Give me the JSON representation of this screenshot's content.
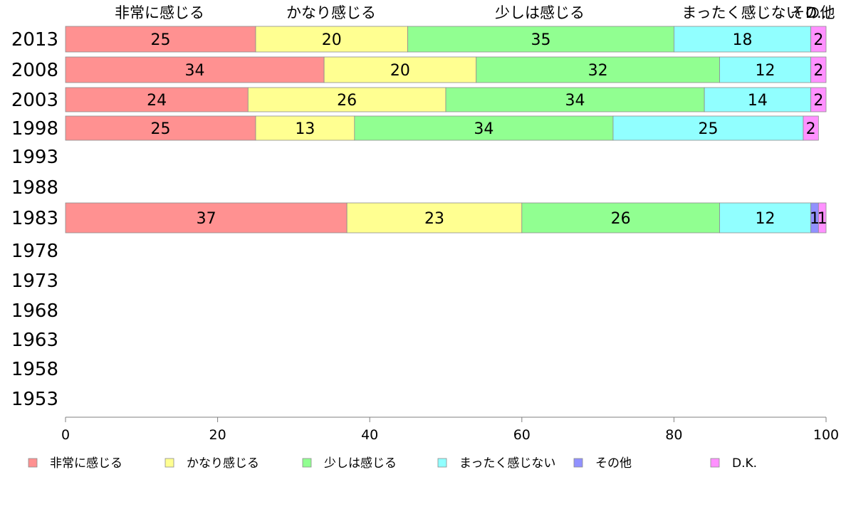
{
  "chart_data": {
    "type": "bar",
    "orientation": "horizontal",
    "stacked": true,
    "categories": [
      "2013",
      "2008",
      "2003",
      "1998",
      "1993",
      "1988",
      "1983",
      "1978",
      "1973",
      "1968",
      "1963",
      "1958",
      "1953"
    ],
    "series": [
      {
        "name": "非常に感じる",
        "color": "#ff9191",
        "values": [
          25,
          34,
          24,
          25,
          null,
          null,
          37,
          null,
          null,
          null,
          null,
          null,
          null
        ]
      },
      {
        "name": "かなり感じる",
        "color": "#ffff91",
        "values": [
          20,
          20,
          26,
          13,
          null,
          null,
          23,
          null,
          null,
          null,
          null,
          null,
          null
        ]
      },
      {
        "name": "少しは感じる",
        "color": "#91ff91",
        "values": [
          35,
          32,
          34,
          34,
          null,
          null,
          26,
          null,
          null,
          null,
          null,
          null,
          null
        ]
      },
      {
        "name": "まったく感じない",
        "color": "#91ffff",
        "values": [
          18,
          12,
          14,
          25,
          null,
          null,
          12,
          null,
          null,
          null,
          null,
          null,
          null
        ]
      },
      {
        "name": "その他",
        "color": "#9191ff",
        "values": [
          0,
          0,
          0,
          0,
          null,
          null,
          1,
          null,
          null,
          null,
          null,
          null,
          null
        ]
      },
      {
        "name": "D.K.",
        "color": "#ff91ff",
        "values": [
          2,
          2,
          2,
          2,
          null,
          null,
          1,
          null,
          null,
          null,
          null,
          null,
          null
        ]
      }
    ],
    "top_labels": [
      "非常に感じる",
      "かなり感じる",
      "少しは感じる",
      "まったく感じない",
      "その他",
      "D..."
    ],
    "xlim": [
      0,
      100
    ],
    "xticks": [
      0,
      20,
      40,
      60,
      80,
      100
    ],
    "legend_position": "bottom",
    "grid": false
  }
}
